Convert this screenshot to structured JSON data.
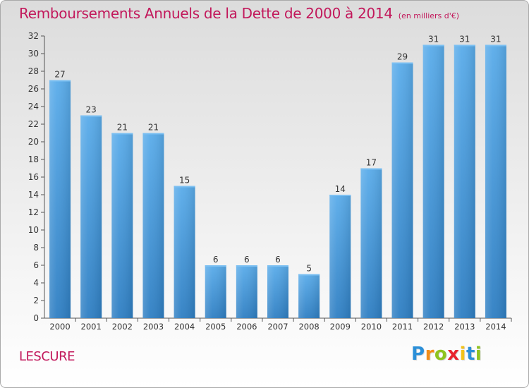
{
  "chart_data": {
    "type": "bar",
    "title": "Remboursements Annuels de la Dette de 2000 à 2014",
    "subtitle": "(en milliers d'€)",
    "categories": [
      "2000",
      "2001",
      "2002",
      "2003",
      "2004",
      "2005",
      "2006",
      "2007",
      "2008",
      "2009",
      "2010",
      "2011",
      "2012",
      "2013",
      "2014"
    ],
    "values": [
      27,
      23,
      21,
      21,
      15,
      6,
      6,
      6,
      5,
      14,
      17,
      29,
      31,
      31,
      31
    ],
    "ylim": [
      0,
      32
    ],
    "yticks": [
      0,
      2,
      4,
      6,
      8,
      10,
      12,
      14,
      16,
      18,
      20,
      22,
      24,
      26,
      28,
      30,
      32
    ],
    "grid": false,
    "bar_color": "#3b8fd1",
    "label_color": "#333333"
  },
  "footer": {
    "commune": "LESCURE",
    "logo": {
      "letters": [
        "P",
        "r",
        "o",
        "x",
        "i",
        "t",
        "i"
      ],
      "colors": [
        "#2b8fd8",
        "#f28c18",
        "#8fc31f",
        "#e8232e",
        "#f2c21b",
        "#2b8fd8",
        "#8fc31f"
      ]
    }
  }
}
